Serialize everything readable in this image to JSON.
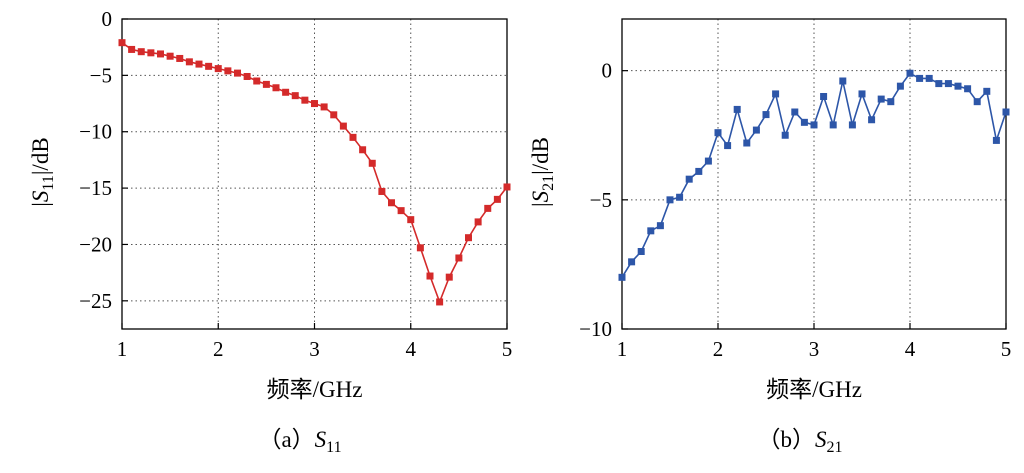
{
  "chart_data": [
    {
      "type": "line",
      "id": "s11",
      "color": "#d42a2a",
      "ylabel_parts": {
        "bar_left": "|",
        "sym": "S",
        "sub": "11",
        "unit": "|/dB"
      },
      "xlabel": "频率/GHz",
      "caption": {
        "prefix": "（a）",
        "sym": "S",
        "sub": "11"
      },
      "xlim": [
        1,
        5
      ],
      "ylim": [
        -27.5,
        0
      ],
      "xticks": [
        1,
        2,
        3,
        4,
        5
      ],
      "xtick_labels": [
        "1",
        "2",
        "3",
        "4",
        "5"
      ],
      "yticks": [
        0,
        -5,
        -10,
        -15,
        -20,
        -25
      ],
      "ytick_labels": [
        "0",
        "−5",
        "−10",
        "−15",
        "−20",
        "−25"
      ],
      "grid": true,
      "x": [
        1.0,
        1.1,
        1.2,
        1.3,
        1.4,
        1.5,
        1.6,
        1.7,
        1.8,
        1.9,
        2.0,
        2.1,
        2.2,
        2.3,
        2.4,
        2.5,
        2.6,
        2.7,
        2.8,
        2.9,
        3.0,
        3.1,
        3.2,
        3.3,
        3.4,
        3.5,
        3.6,
        3.7,
        3.8,
        3.9,
        4.0,
        4.1,
        4.2,
        4.3,
        4.4,
        4.5,
        4.6,
        4.7,
        4.8,
        4.9,
        5.0
      ],
      "y": [
        -2.1,
        -2.7,
        -2.9,
        -3.0,
        -3.1,
        -3.3,
        -3.5,
        -3.8,
        -4.0,
        -4.2,
        -4.4,
        -4.6,
        -4.8,
        -5.1,
        -5.5,
        -5.8,
        -6.1,
        -6.5,
        -6.8,
        -7.2,
        -7.5,
        -7.8,
        -8.5,
        -9.5,
        -10.5,
        -11.6,
        -12.8,
        -15.3,
        -16.3,
        -17.0,
        -17.8,
        -20.3,
        -22.8,
        -25.1,
        -22.9,
        -21.2,
        -19.4,
        -18.0,
        -16.8,
        -16.0,
        -14.9
      ]
    },
    {
      "type": "line",
      "id": "s21",
      "color": "#2d56a8",
      "ylabel_parts": {
        "bar_left": "|",
        "sym": "S",
        "sub": "21",
        "unit": "|/dB"
      },
      "xlabel": "频率/GHz",
      "caption": {
        "prefix": "（b）",
        "sym": "S",
        "sub": "21"
      },
      "xlim": [
        1,
        5
      ],
      "ylim": [
        -10,
        2
      ],
      "xticks": [
        1,
        2,
        3,
        4,
        5
      ],
      "xtick_labels": [
        "1",
        "2",
        "3",
        "4",
        "5"
      ],
      "yticks": [
        0,
        -5,
        -10
      ],
      "ytick_labels": [
        "0",
        "−5",
        "−10"
      ],
      "grid": true,
      "x": [
        1.0,
        1.1,
        1.2,
        1.3,
        1.4,
        1.5,
        1.6,
        1.7,
        1.8,
        1.9,
        2.0,
        2.1,
        2.2,
        2.3,
        2.4,
        2.5,
        2.6,
        2.7,
        2.8,
        2.9,
        3.0,
        3.1,
        3.2,
        3.3,
        3.4,
        3.5,
        3.6,
        3.7,
        3.8,
        3.9,
        4.0,
        4.1,
        4.2,
        4.3,
        4.4,
        4.5,
        4.6,
        4.7,
        4.8,
        4.9,
        5.0
      ],
      "y": [
        -8.0,
        -7.4,
        -7.0,
        -6.2,
        -6.0,
        -5.0,
        -4.9,
        -4.2,
        -3.9,
        -3.5,
        -2.4,
        -2.9,
        -1.5,
        -2.8,
        -2.3,
        -1.7,
        -0.9,
        -2.5,
        -1.6,
        -2.0,
        -2.1,
        -1.0,
        -2.1,
        -0.4,
        -2.1,
        -0.9,
        -1.9,
        -1.1,
        -1.2,
        -0.6,
        -0.1,
        -0.3,
        -0.3,
        -0.5,
        -0.5,
        -0.6,
        -0.7,
        -1.2,
        -0.8,
        -2.7,
        -1.6
      ]
    }
  ]
}
